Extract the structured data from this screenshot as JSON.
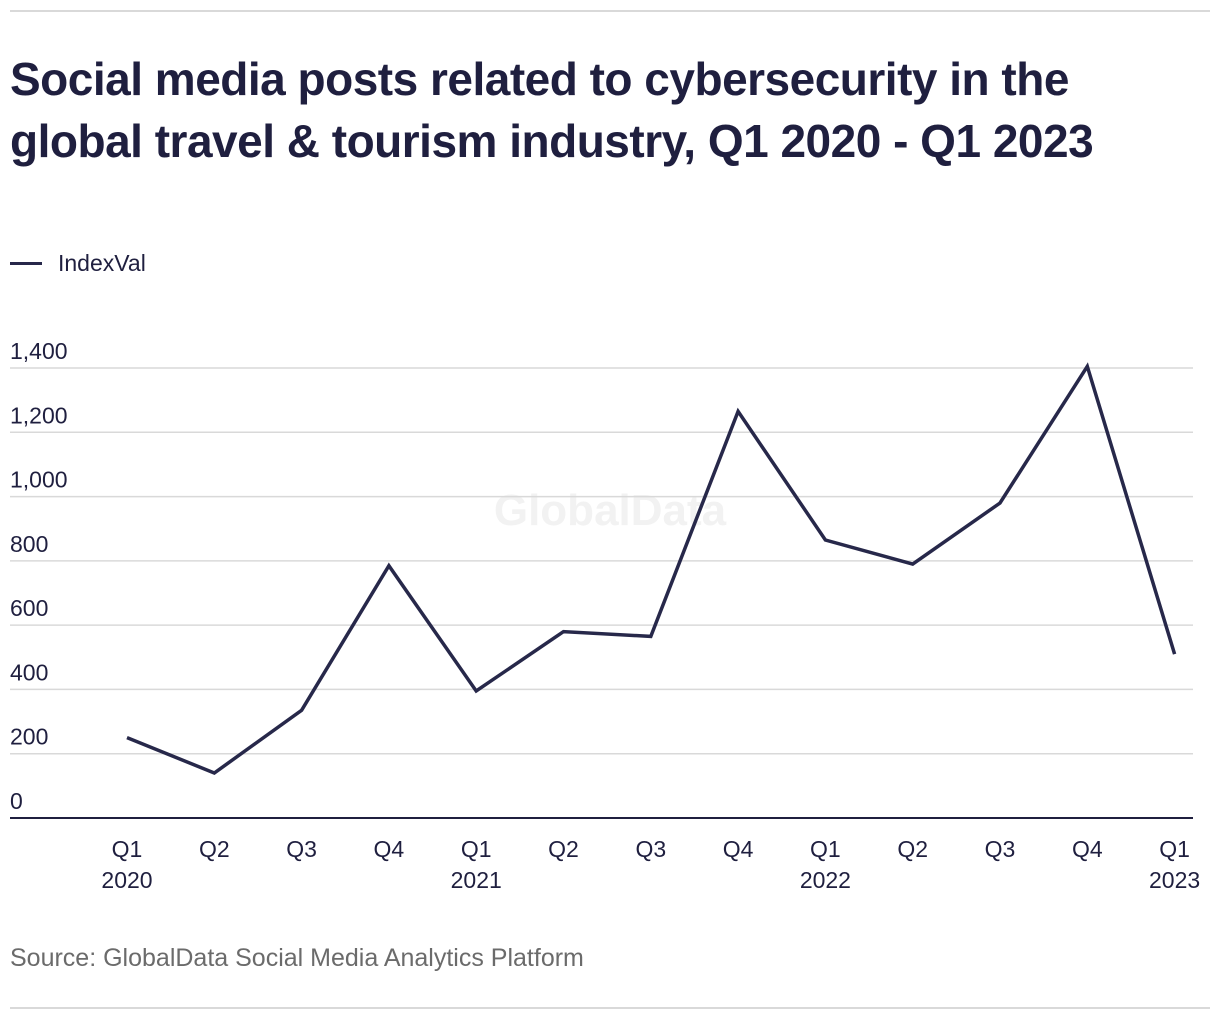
{
  "chart_data": {
    "type": "line",
    "title": "Social media posts related to cybersecurity in the global travel & tourism industry, Q1 2020 - Q1 2023",
    "categories": [
      "Q1 2020",
      "Q2",
      "Q3",
      "Q4",
      "Q1 2021",
      "Q2",
      "Q3",
      "Q4",
      "Q1 2022",
      "Q2",
      "Q3",
      "Q4",
      "Q1 2023"
    ],
    "x_tick_labels": [
      {
        "line1": "Q1",
        "line2": "2020"
      },
      {
        "line1": "Q2",
        "line2": ""
      },
      {
        "line1": "Q3",
        "line2": ""
      },
      {
        "line1": "Q4",
        "line2": ""
      },
      {
        "line1": "Q1",
        "line2": "2021"
      },
      {
        "line1": "Q2",
        "line2": ""
      },
      {
        "line1": "Q3",
        "line2": ""
      },
      {
        "line1": "Q4",
        "line2": ""
      },
      {
        "line1": "Q1",
        "line2": "2022"
      },
      {
        "line1": "Q2",
        "line2": ""
      },
      {
        "line1": "Q3",
        "line2": ""
      },
      {
        "line1": "Q4",
        "line2": ""
      },
      {
        "line1": "Q1",
        "line2": "2023"
      }
    ],
    "series": [
      {
        "name": "IndexVal",
        "color": "#27284a",
        "values": [
          250,
          140,
          335,
          785,
          395,
          580,
          565,
          1265,
          865,
          790,
          980,
          1405,
          510
        ]
      }
    ],
    "y_ticks": [
      "0",
      "200",
      "400",
      "600",
      "800",
      "1,000",
      "1,200",
      "1,400"
    ],
    "y_tick_values": [
      0,
      200,
      400,
      600,
      800,
      1000,
      1200,
      1400
    ],
    "ylim": [
      0,
      1400
    ],
    "xlabel": "",
    "ylabel": "",
    "grid": true,
    "legend_position": "top-left",
    "watermark": "GlobalData",
    "source": "Source: GlobalData Social Media Analytics Platform"
  }
}
